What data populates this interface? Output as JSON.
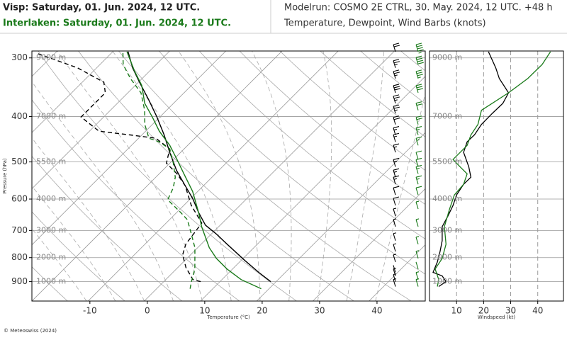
{
  "header": {
    "line1_left": "Visp: Saturday, 01. Jun. 2024, 12 UTC.",
    "line2_left": "Interlaken: Saturday, 01. Jun. 2024, 12 UTC.",
    "line1_right": "Modelrun: COSMO 2E CTRL, 30. May. 2024, 12 UTC. +48 h",
    "line2_right": "Temperature, Dewpoint, Wind Barbs (knots)"
  },
  "footer": "© Meteoswiss (2024)",
  "chart_data": [
    {
      "type": "skewt",
      "x_label": "Temperature (°C)",
      "y_label": "Pressure (hPa)",
      "xlim": [
        -20.1,
        48.4
      ],
      "xticks": [
        -10,
        0,
        10,
        20,
        30,
        40
      ],
      "ylim": [
        990,
        290
      ],
      "yticks": [
        300,
        400,
        500,
        600,
        700,
        800,
        900
      ],
      "log_y": true,
      "grid": true,
      "height_labels": [
        {
          "value": 300,
          "label": "9000 m"
        },
        {
          "value": 400,
          "label": "7000 m"
        },
        {
          "value": 500,
          "label": "5500 m"
        },
        {
          "value": 600,
          "label": "4000 m"
        },
        {
          "value": 700,
          "label": "3000 m"
        },
        {
          "value": 800,
          "label": "2000 m"
        },
        {
          "value": 900,
          "label": "1000 m"
        }
      ],
      "series": [
        {
          "color": "#000000",
          "style": "solid",
          "pressure": [
            900,
            860,
            811,
            749,
            711,
            682,
            641,
            598,
            562,
            521,
            477,
            438,
            401,
            368,
            338,
            315,
            291
          ],
          "values": [
            18.1,
            14.4,
            9.9,
            4.0,
            0.2,
            -3.1,
            -6.5,
            -10.0,
            -13.5,
            -17.7,
            -22.0,
            -26.0,
            -30.4,
            -34.9,
            -39.5,
            -43.2,
            -46.8
          ]
        },
        {
          "color": "#000000",
          "style": "dashed",
          "pressure": [
            900,
            891,
            840,
            789,
            749,
            675,
            619,
            562,
            530,
            503,
            469,
            445,
            438,
            430,
            401,
            381,
            356,
            338,
            315,
            294
          ],
          "values": [
            5.9,
            4.2,
            0.9,
            -1.9,
            -3.2,
            -4.1,
            -9.0,
            -13.5,
            -17.0,
            -20.7,
            -22.6,
            -26.9,
            -31.9,
            -38.0,
            -43.6,
            -43.6,
            -43.6,
            -45.7,
            -52.8,
            -62.1
          ]
        },
        {
          "color": "#1a7a1a",
          "style": "solid",
          "pressure": [
            932,
            891,
            846,
            803,
            762,
            687,
            641,
            578,
            530,
            494,
            461,
            430,
            401,
            375,
            343,
            320,
            291
          ],
          "values": [
            17.7,
            12.6,
            8.3,
            4.6,
            1.5,
            -3.5,
            -6.5,
            -11.2,
            -15.8,
            -19.5,
            -23.2,
            -27.5,
            -31.2,
            -34.9,
            -38.6,
            -42.3,
            -47.0
          ]
        },
        {
          "color": "#1a7a1a",
          "style": "dashed",
          "pressure": [
            932,
            900,
            846,
            762,
            711,
            664,
            641,
            619,
            602,
            568,
            539,
            503,
            469,
            453,
            445,
            416,
            388,
            356,
            332,
            310,
            291
          ],
          "values": [
            5.3,
            4.3,
            2.7,
            -1.0,
            -4.1,
            -7.2,
            -9.6,
            -12.1,
            -14.1,
            -15.2,
            -16.7,
            -19.5,
            -22.6,
            -25.7,
            -28.1,
            -31.2,
            -33.7,
            -37.4,
            -41.7,
            -45.4,
            -47.7
          ]
        }
      ]
    },
    {
      "type": "wind",
      "x_label": "Windspeed (kt)",
      "xlim": [
        0,
        49.5
      ],
      "xticks": [
        10,
        20,
        30,
        40
      ],
      "ylim": [
        990,
        290
      ],
      "log_y": true,
      "series": [
        {
          "color": "#000000",
          "pressure": [
            291,
            315,
            332,
            356,
            375,
            394,
            416,
            438,
            453,
            477,
            512,
            539,
            558,
            588,
            619,
            652,
            687,
            736,
            776,
            817,
            860,
            875,
            900,
            922
          ],
          "values": [
            21.8,
            24.5,
            25.8,
            29.2,
            27.1,
            23.2,
            19.2,
            16.6,
            13.9,
            12.6,
            14.5,
            15.3,
            12.6,
            10.0,
            8.7,
            6.8,
            4.7,
            4.7,
            3.9,
            2.9,
            1.3,
            4.7,
            6.1,
            3.4
          ]
        },
        {
          "color": "#1a7a1a",
          "pressure": [
            291,
            310,
            332,
            356,
            388,
            416,
            438,
            461,
            494,
            512,
            530,
            558,
            588,
            630,
            687,
            749,
            803,
            846,
            891,
            922
          ],
          "values": [
            44.7,
            41.6,
            36.3,
            29.2,
            19.2,
            17.9,
            15.3,
            13.9,
            8.7,
            11.3,
            13.9,
            12.6,
            9.2,
            7.4,
            5.5,
            6.1,
            4.7,
            2.1,
            3.4,
            2.9
          ]
        }
      ]
    }
  ]
}
